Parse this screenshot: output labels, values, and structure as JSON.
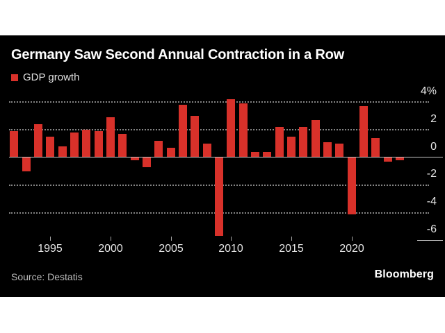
{
  "page": {
    "background": "#ffffff",
    "panel_background": "#000000"
  },
  "header": {
    "title": "Germany Saw Second Annual Contraction in a Row",
    "legend": {
      "label": "GDP growth",
      "swatch_color": "#d8312a"
    }
  },
  "footer": {
    "source": "Source: Destatis",
    "brand": "Bloomberg"
  },
  "chart_data": {
    "type": "bar",
    "title": "Germany Saw Second Annual Contraction in a Row",
    "categories": [
      1992,
      1993,
      1994,
      1995,
      1996,
      1997,
      1998,
      1999,
      2000,
      2001,
      2002,
      2003,
      2004,
      2005,
      2006,
      2007,
      2008,
      2009,
      2010,
      2011,
      2012,
      2013,
      2014,
      2015,
      2016,
      2017,
      2018,
      2019,
      2020,
      2021,
      2022,
      2023,
      2024
    ],
    "series": [
      {
        "name": "GDP growth",
        "values": [
          1.9,
          -1.0,
          2.4,
          1.5,
          0.8,
          1.8,
          2.0,
          1.9,
          2.9,
          1.7,
          -0.2,
          -0.7,
          1.2,
          0.7,
          3.8,
          3.0,
          1.0,
          -5.7,
          4.2,
          3.9,
          0.4,
          0.4,
          2.2,
          1.5,
          2.2,
          2.7,
          1.1,
          1.0,
          -4.1,
          3.7,
          1.4,
          -0.3,
          -0.2
        ]
      }
    ],
    "unit": "%",
    "xlabel": "",
    "ylabel": "",
    "ylim": [
      -6.8,
      4.6
    ],
    "y_ticks": [
      {
        "value": 4,
        "label": "4%"
      },
      {
        "value": 2,
        "label": "2"
      },
      {
        "value": 0,
        "label": "0"
      },
      {
        "value": -2,
        "label": "-2"
      },
      {
        "value": -4,
        "label": "-4"
      },
      {
        "value": -6,
        "label": "-6"
      }
    ],
    "x_ticks": [
      1995,
      2000,
      2005,
      2010,
      2015,
      2020
    ],
    "bar_color": "#d8312a",
    "grid": {
      "style": "dotted",
      "lines_at": [
        4,
        2,
        -2,
        -4
      ],
      "zero_line": true,
      "axis_labels_side": "right"
    },
    "legend_position": "top-left"
  }
}
